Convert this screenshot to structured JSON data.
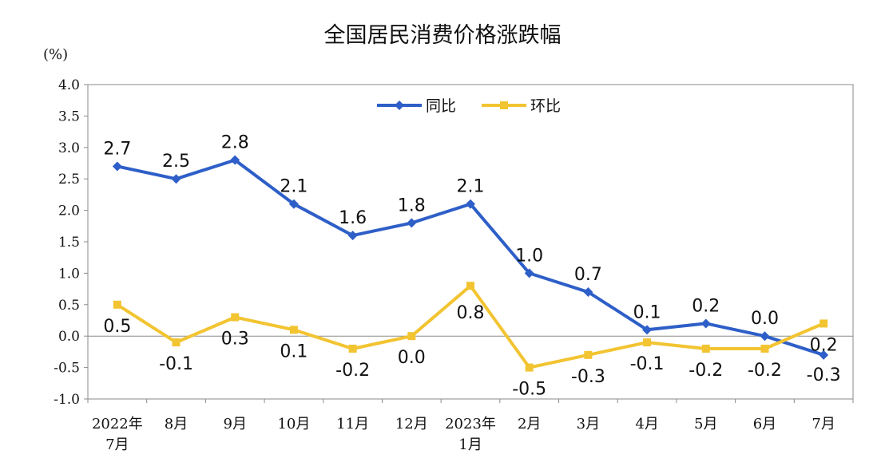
{
  "chart_data": {
    "type": "line",
    "title": "全国居民消费价格涨跌幅",
    "unit_label": "(%)",
    "categories": [
      [
        "2022年",
        "7月"
      ],
      [
        "8月"
      ],
      [
        "9月"
      ],
      [
        "10月"
      ],
      [
        "11月"
      ],
      [
        "12月"
      ],
      [
        "2023年",
        "1月"
      ],
      [
        "2月"
      ],
      [
        "3月"
      ],
      [
        "4月"
      ],
      [
        "5月"
      ],
      [
        "6月"
      ],
      [
        "7月"
      ]
    ],
    "y_ticks": [
      "4.0",
      "3.5",
      "3.0",
      "2.5",
      "2.0",
      "1.5",
      "1.0",
      "0.5",
      "0.0",
      "-0.5",
      "-1.0"
    ],
    "ylim": [
      -1.0,
      4.0
    ],
    "legend_position": "top-center",
    "grid": false,
    "series": [
      {
        "name": "同比",
        "color": "#2E5FC8",
        "marker": "diamond",
        "values": [
          2.7,
          2.5,
          2.8,
          2.1,
          1.6,
          1.8,
          2.1,
          1.0,
          0.7,
          0.1,
          0.2,
          0.0,
          -0.3
        ],
        "labels": [
          "2.7",
          "2.5",
          "2.8",
          "2.1",
          "1.6",
          "1.8",
          "2.1",
          "1.0",
          "0.7",
          "0.1",
          "0.2",
          "0.0",
          "-0.3"
        ]
      },
      {
        "name": "环比",
        "color": "#F2C431",
        "marker": "square",
        "values": [
          0.5,
          -0.1,
          0.3,
          0.1,
          -0.2,
          0.0,
          0.8,
          -0.5,
          -0.3,
          -0.1,
          -0.2,
          -0.2,
          0.2
        ],
        "labels": [
          "0.5",
          "-0.1",
          "0.3",
          "0.1",
          "-0.2",
          "0.0",
          "0.8",
          "-0.5",
          "-0.3",
          "-0.1",
          "-0.2",
          "-0.2",
          "0.2"
        ]
      }
    ]
  }
}
